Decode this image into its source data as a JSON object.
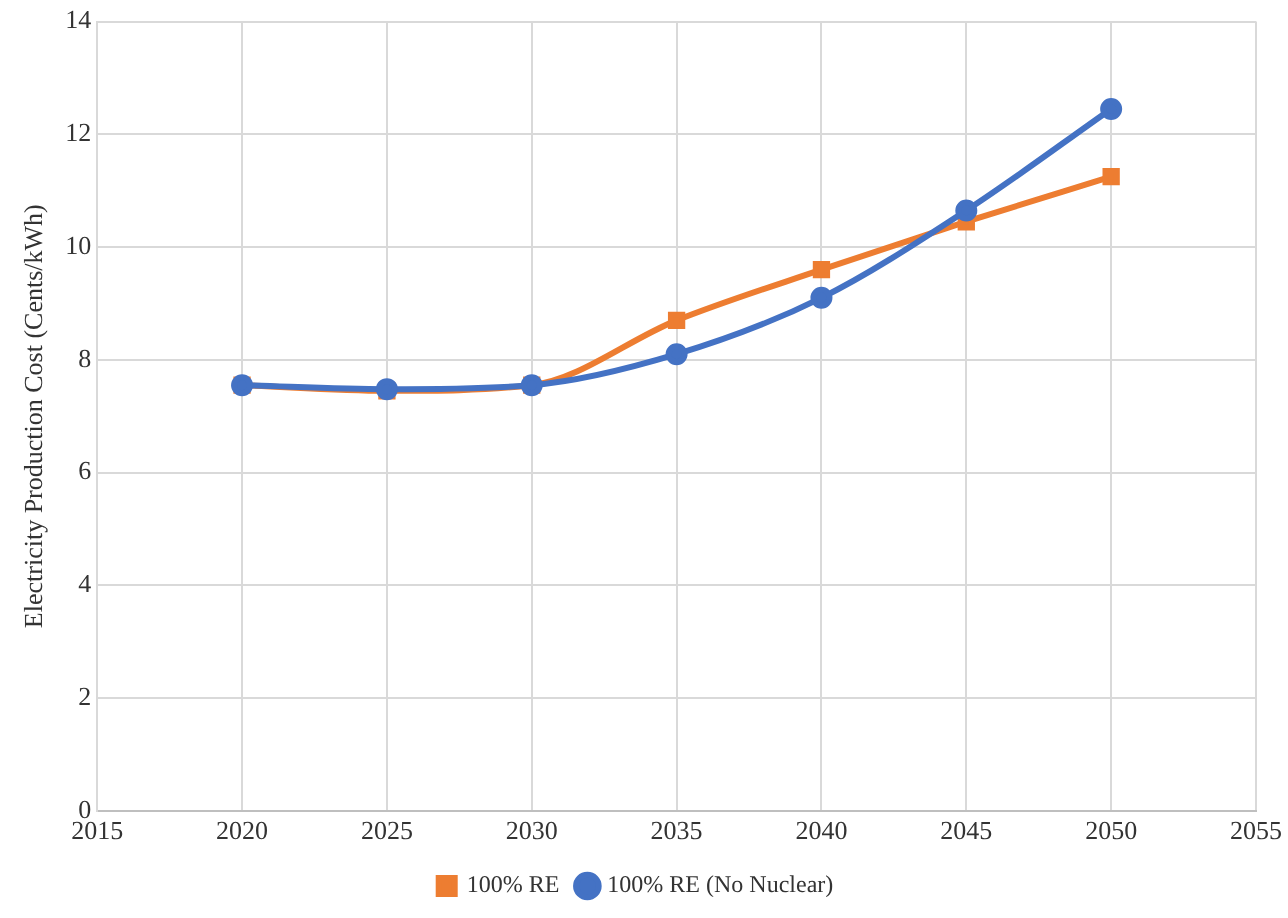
{
  "chart_data": {
    "type": "line",
    "ylabel": "Electricity Production Cost (Cents/kWh)",
    "x": [
      2020,
      2025,
      2030,
      2035,
      2040,
      2045,
      2050
    ],
    "xlim": [
      2015,
      2055
    ],
    "xticks": [
      2015,
      2020,
      2025,
      2030,
      2035,
      2040,
      2045,
      2050,
      2055
    ],
    "ylim": [
      0,
      14
    ],
    "yticks": [
      0,
      2,
      4,
      6,
      8,
      10,
      12,
      14
    ],
    "grid": true,
    "legend": "bottom",
    "series": [
      {
        "name": "100% RE",
        "color": "#ed7d31",
        "marker": "square",
        "values": [
          7.55,
          7.45,
          7.55,
          8.7,
          9.6,
          10.45,
          11.25
        ]
      },
      {
        "name": "100% RE (No Nuclear)",
        "color": "#4472c4",
        "marker": "circle",
        "values": [
          7.55,
          7.48,
          7.55,
          8.1,
          9.1,
          10.65,
          12.45
        ]
      }
    ]
  }
}
